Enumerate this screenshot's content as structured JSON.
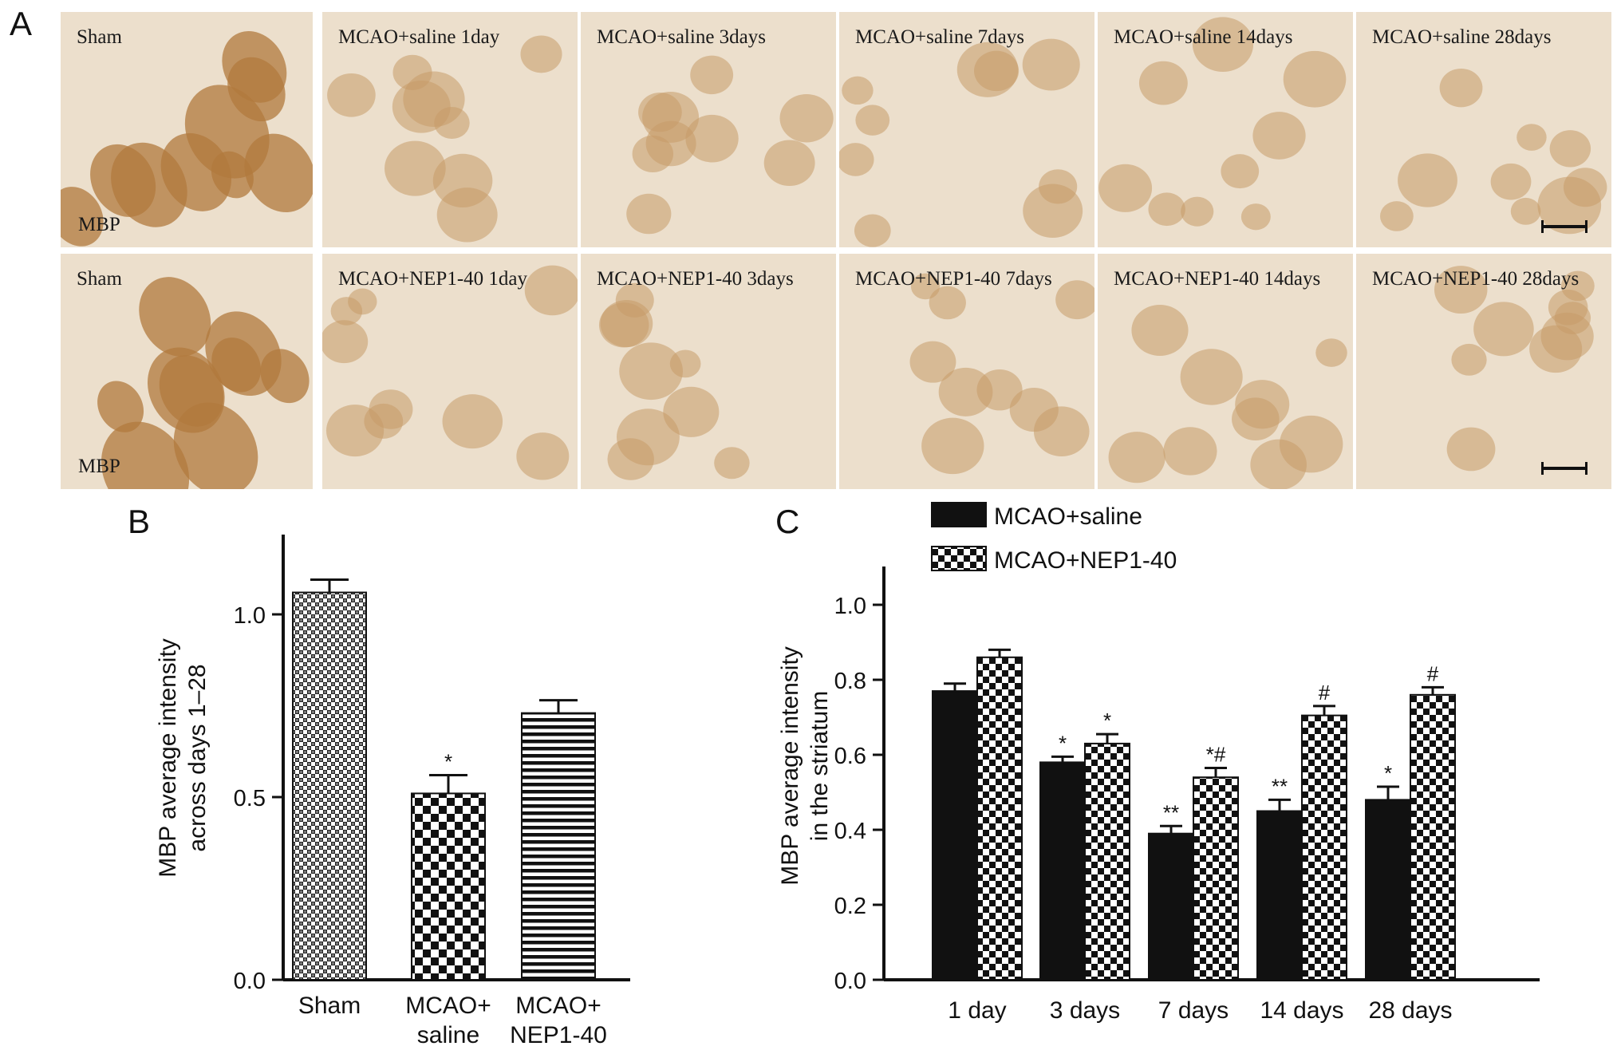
{
  "panel_labels": [
    "A",
    "B",
    "C"
  ],
  "micrographs": {
    "stain_label": "MBP",
    "rows": [
      [
        "Sham",
        "MCAO+saline 1day",
        "MCAO+saline 3days",
        "MCAO+saline 7days",
        "MCAO+saline 14days",
        "MCAO+saline 28days"
      ],
      [
        "Sham",
        "MCAO+NEP1-40 1day",
        "MCAO+NEP1-40 3days",
        "MCAO+NEP1-40 7days",
        "MCAO+NEP1-40 14days",
        "MCAO+NEP1-40 28days"
      ]
    ]
  },
  "chart_data": [
    {
      "type": "bar",
      "panel": "B",
      "title": "",
      "xlabel": "",
      "ylabel": "MBP average intensity across days 1–28",
      "ylim": [
        0,
        1.2
      ],
      "yticks": [
        "0.0",
        "0.5",
        "1.0"
      ],
      "categories": [
        "Sham",
        "MCAO+ saline",
        "MCAO+ NEP1-40"
      ],
      "values": [
        1.06,
        0.51,
        0.73
      ],
      "errors": [
        0.035,
        0.05,
        0.035
      ],
      "annotations": [
        "",
        "*",
        ""
      ],
      "fills": [
        "crosshatch",
        "checkerboard",
        "horizontal-stripes"
      ],
      "grid": false
    },
    {
      "type": "bar",
      "panel": "C",
      "title": "",
      "xlabel": "",
      "ylabel": "MBP average intensity in the striatum",
      "ylim": [
        0,
        1.1
      ],
      "yticks": [
        "0.0",
        "0.2",
        "0.4",
        "0.6",
        "0.8",
        "1.0"
      ],
      "categories": [
        "1 day",
        "3 days",
        "7 days",
        "14 days",
        "28 days"
      ],
      "legend_position": "top-left",
      "series": [
        {
          "name": "MCAO+saline",
          "fill": "solid-black",
          "values": [
            0.77,
            0.58,
            0.39,
            0.45,
            0.48
          ],
          "errors": [
            0.02,
            0.015,
            0.02,
            0.03,
            0.035
          ],
          "annotations": [
            "",
            "*",
            "**",
            "**",
            "*"
          ]
        },
        {
          "name": "MCAO+NEP1-40",
          "fill": "checkerboard",
          "values": [
            0.86,
            0.63,
            0.54,
            0.705,
            0.76
          ],
          "errors": [
            0.02,
            0.025,
            0.025,
            0.025,
            0.02
          ],
          "annotations": [
            "",
            "*",
            "*#",
            "#",
            "#"
          ]
        }
      ],
      "grid": false
    }
  ]
}
